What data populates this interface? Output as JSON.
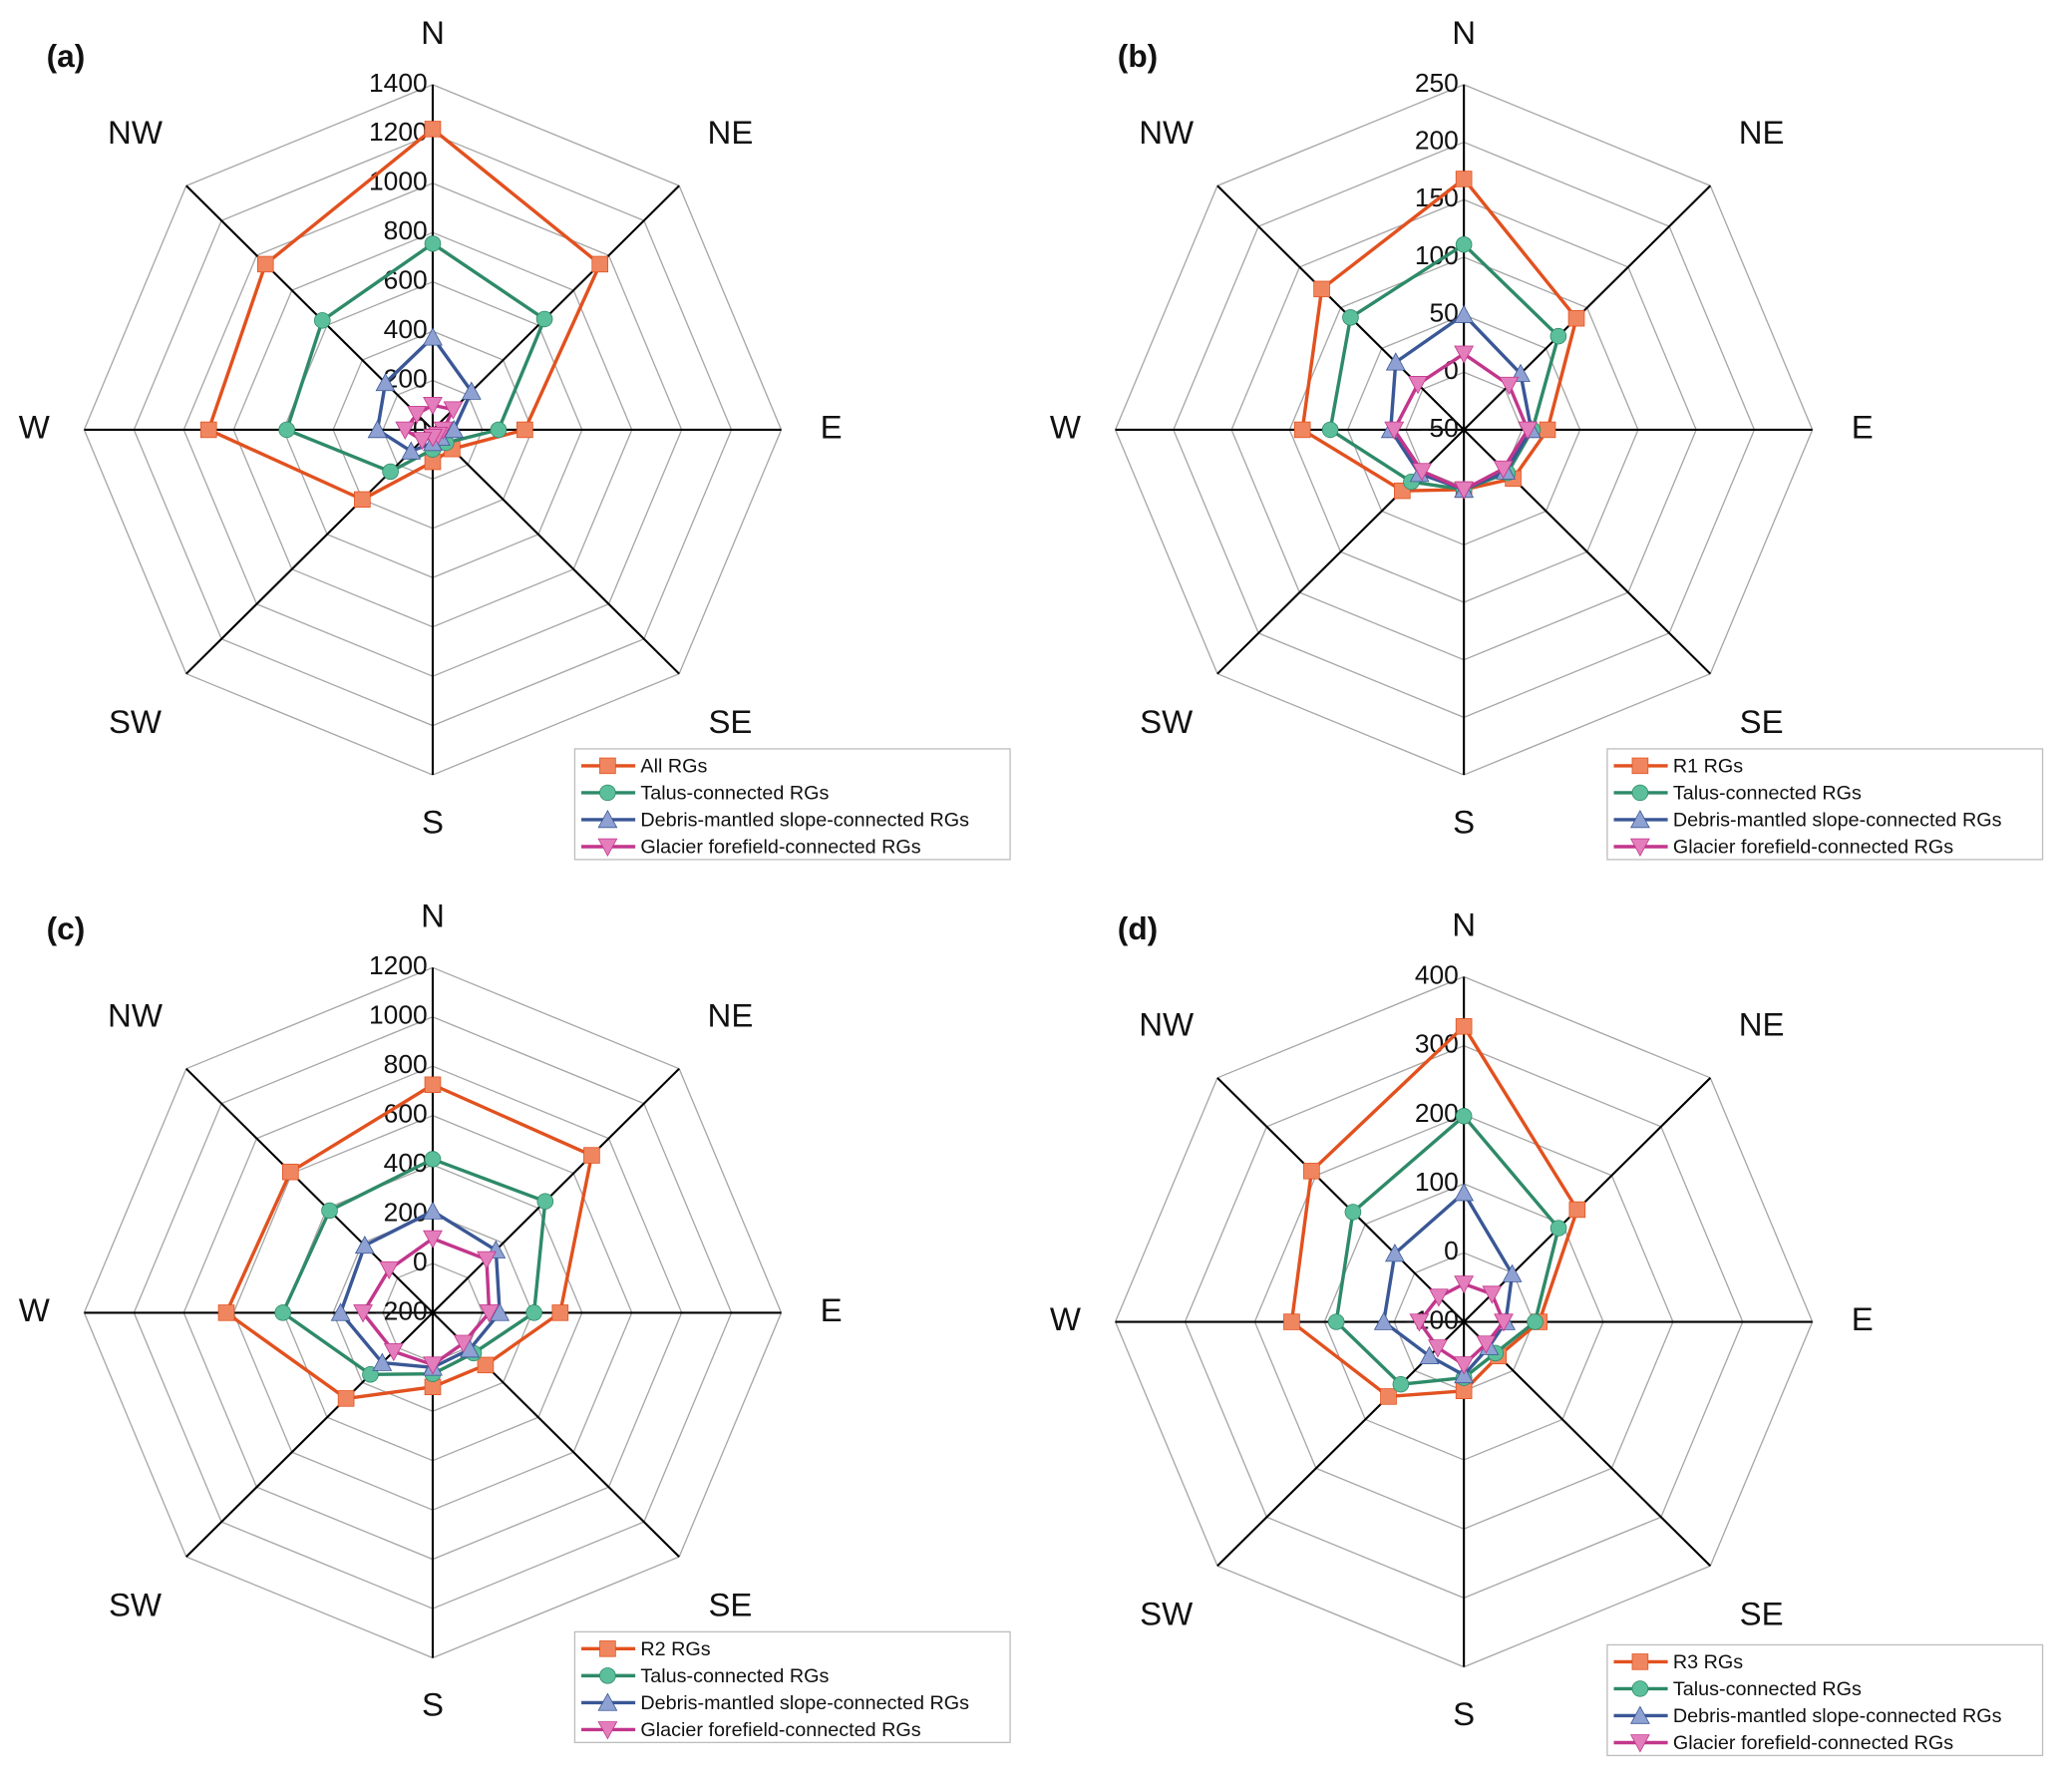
{
  "chart_data": [
    {
      "type": "radar",
      "label": "(a)",
      "categories": [
        "N",
        "NE",
        "E",
        "SE",
        "S",
        "SW",
        "W",
        "NW"
      ],
      "ylim": [
        0,
        1400
      ],
      "yticks": [
        0,
        200,
        400,
        600,
        800,
        1000,
        1200,
        1400
      ],
      "legend": "lower right",
      "series": [
        {
          "name": "All RGs",
          "color": "#e2511f",
          "marker_color": "#f0865f",
          "marker": "square",
          "values": [
            1220,
            950,
            370,
            110,
            130,
            400,
            900,
            950
          ]
        },
        {
          "name": "Talus-connected RGs",
          "color": "#2e8a68",
          "marker_color": "#5cbf9b",
          "marker": "circle",
          "values": [
            755,
            635,
            264,
            75,
            80,
            240,
            586,
            627
          ]
        },
        {
          "name": "Debris-mantled slope-connected RGs",
          "color": "#3a5796",
          "marker_color": "#8ea1d2",
          "marker": "triangle",
          "values": [
            375,
            220,
            85,
            45,
            53,
            123,
            222,
            269
          ]
        },
        {
          "name": "Glacier forefield-connected RGs",
          "color": "#c2368c",
          "marker_color": "#e47dbb",
          "marker": "triangle-down",
          "values": [
            100,
            116,
            42,
            30,
            30,
            60,
            111,
            90
          ]
        }
      ]
    },
    {
      "type": "radar",
      "label": "(b)",
      "categories": [
        "N",
        "NE",
        "E",
        "SE",
        "S",
        "SW",
        "W",
        "NW"
      ],
      "ylim": [
        -50,
        250
      ],
      "yticks": [
        -50,
        0,
        50,
        100,
        150,
        200,
        250
      ],
      "legend": "lower right",
      "series": [
        {
          "name": "R1 RGs",
          "color": "#e2511f",
          "marker_color": "#f0865f",
          "marker": "square",
          "values": [
            168,
            87,
            22,
            10,
            2,
            25,
            89,
            123
          ]
        },
        {
          "name": "Talus-connected RGs",
          "color": "#2e8a68",
          "marker_color": "#5cbf9b",
          "marker": "circle",
          "values": [
            111,
            65,
            9,
            3,
            2,
            14,
            65,
            88
          ]
        },
        {
          "name": "Debris-mantled slope-connected RGs",
          "color": "#3a5796",
          "marker_color": "#8ea1d2",
          "marker": "triangle",
          "values": [
            50,
            19,
            8,
            1,
            2,
            4,
            13,
            33
          ]
        },
        {
          "name": "Glacier forefield-connected RGs",
          "color": "#c2368c",
          "marker_color": "#e47dbb",
          "marker": "triangle-down",
          "values": [
            16,
            5,
            5,
            -2,
            2,
            1,
            10,
            6
          ]
        }
      ]
    },
    {
      "type": "radar",
      "label": "(c)",
      "categories": [
        "N",
        "NE",
        "E",
        "SE",
        "S",
        "SW",
        "W",
        "NW"
      ],
      "ylim": [
        -200,
        1200
      ],
      "yticks": [
        -200,
        0,
        200,
        400,
        600,
        800,
        1000,
        1200
      ],
      "legend": "lower right",
      "series": [
        {
          "name": "R2 RGs",
          "color": "#e2511f",
          "marker_color": "#f0865f",
          "marker": "square",
          "values": [
            725,
            703,
            312,
            100,
            101,
            292,
            629,
            608
          ]
        },
        {
          "name": "Talus-connected RGs",
          "color": "#2e8a68",
          "marker_color": "#5cbf9b",
          "marker": "circle",
          "values": [
            423,
            439,
            207,
            32,
            48,
            154,
            402,
            386
          ]
        },
        {
          "name": "Debris-mantled slope-connected RGs",
          "color": "#3a5796",
          "marker_color": "#8ea1d2",
          "marker": "triangle",
          "values": [
            212,
            159,
            69,
            10,
            22,
            87,
            170,
            186
          ]
        },
        {
          "name": "Glacier forefield-connected RGs",
          "color": "#c2368c",
          "marker_color": "#e47dbb",
          "marker": "triangle-down",
          "values": [
            101,
            106,
            27,
            -26,
            11,
            22,
            80,
            48
          ]
        }
      ]
    },
    {
      "type": "radar",
      "label": "(d)",
      "categories": [
        "N",
        "NE",
        "E",
        "SE",
        "S",
        "SW",
        "W",
        "NW"
      ],
      "ylim": [
        -100,
        400
      ],
      "yticks": [
        -100,
        0,
        100,
        200,
        300,
        400
      ],
      "legend": "lower right",
      "series": [
        {
          "name": "R3 RGs",
          "color": "#e2511f",
          "marker_color": "#f0865f",
          "marker": "square",
          "values": [
            328,
            130,
            8,
            -30,
            0,
            53,
            147,
            209
          ]
        },
        {
          "name": "Talus-connected RGs",
          "color": "#2e8a68",
          "marker_color": "#5cbf9b",
          "marker": "circle",
          "values": [
            198,
            92,
            2,
            -36,
            -19,
            28,
            83,
            125
          ]
        },
        {
          "name": "Debris-mantled slope-connected RGs",
          "color": "#3a5796",
          "marker_color": "#8ea1d2",
          "marker": "triangle",
          "values": [
            87,
            -2,
            -40,
            -49,
            -23,
            -30,
            15,
            40
          ]
        },
        {
          "name": "Glacier forefield-connected RGs",
          "color": "#c2368c",
          "marker_color": "#e47dbb",
          "marker": "triangle-down",
          "values": [
            -45,
            -43,
            -43,
            -55,
            -38,
            -47,
            -36,
            -49
          ]
        }
      ]
    }
  ]
}
